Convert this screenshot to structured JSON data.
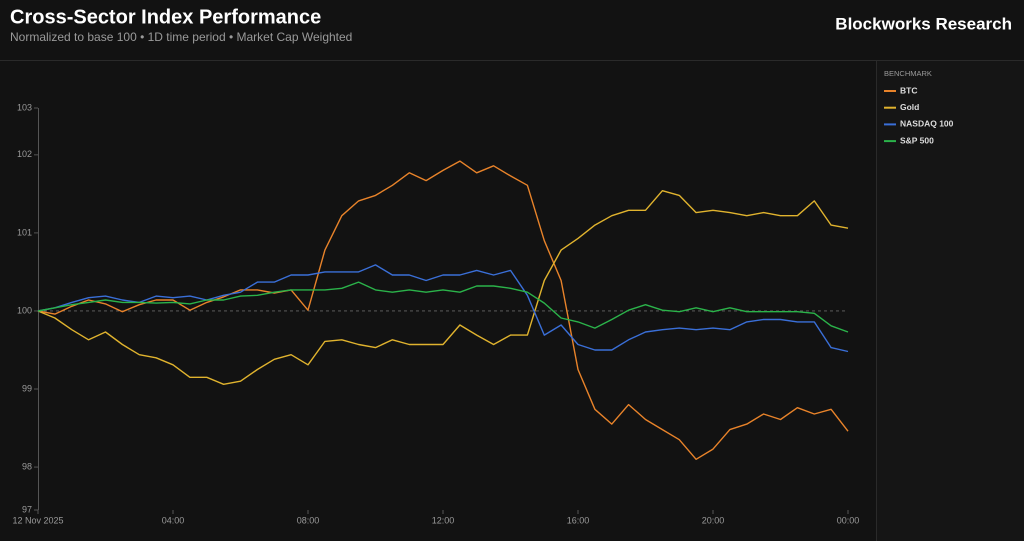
{
  "chart_data": {
    "type": "line",
    "title": "Cross-Sector Index Performance",
    "subtitle": "Normalized to base 100 • 1D time period • Market Cap Weighted",
    "brand": "Blockworks Research",
    "legend_title": "BENCHMARK",
    "legend": "right",
    "baseline": 100,
    "x": [
      0,
      0.5,
      1,
      1.5,
      2,
      2.5,
      3,
      3.5,
      4,
      4.5,
      5,
      5.5,
      6,
      6.5,
      7,
      7.5,
      8,
      8.5,
      9,
      9.5,
      10,
      10.5,
      11,
      11.5,
      12,
      12.5,
      13,
      13.5,
      14,
      14.5,
      15,
      15.5,
      16,
      16.5,
      17,
      17.5,
      18,
      18.5,
      19,
      19.5,
      20,
      20.5,
      21,
      21.5,
      22,
      22.5,
      23,
      23.5,
      24
    ],
    "xlim": [
      0,
      24
    ],
    "xticks": [
      {
        "value": 0,
        "label": "12 Nov 2025"
      },
      {
        "value": 4,
        "label": "04:00"
      },
      {
        "value": 8,
        "label": "08:00"
      },
      {
        "value": 12,
        "label": "12:00"
      },
      {
        "value": 16,
        "label": "16:00"
      },
      {
        "value": 20,
        "label": "20:00"
      },
      {
        "value": 24,
        "label": "00:00"
      }
    ],
    "ylim": [
      97.45,
      102.6
    ],
    "yticks": [
      {
        "value": 97.45,
        "label": "97"
      },
      98,
      99,
      100,
      101,
      102,
      {
        "value": 102.6,
        "label": "103"
      }
    ],
    "series": [
      {
        "name": "BTC",
        "color": "#e8832a",
        "values": [
          100,
          99.96,
          100.06,
          100.14,
          100.09,
          99.99,
          100.08,
          100.14,
          100.14,
          100.01,
          100.11,
          100.18,
          100.27,
          100.27,
          100.23,
          100.27,
          100.01,
          100.78,
          101.22,
          101.41,
          101.48,
          101.61,
          101.77,
          101.67,
          101.8,
          101.92,
          101.77,
          101.86,
          101.73,
          101.61,
          100.9,
          100.39,
          99.25,
          98.74,
          98.55,
          98.8,
          98.61,
          98.48,
          98.35,
          98.1,
          98.23,
          98.48,
          98.55,
          98.68,
          98.61,
          98.76,
          98.68,
          98.74,
          98.46
        ]
      },
      {
        "name": "Gold",
        "color": "#e0b32e",
        "values": [
          100,
          99.91,
          99.76,
          99.63,
          99.73,
          99.57,
          99.44,
          99.4,
          99.31,
          99.15,
          99.15,
          99.06,
          99.1,
          99.25,
          99.38,
          99.44,
          99.31,
          99.61,
          99.63,
          99.57,
          99.53,
          99.63,
          99.57,
          99.57,
          99.57,
          99.82,
          99.69,
          99.57,
          99.69,
          99.69,
          100.39,
          100.78,
          100.93,
          101.1,
          101.22,
          101.29,
          101.29,
          101.54,
          101.48,
          101.26,
          101.29,
          101.26,
          101.22,
          101.26,
          101.22,
          101.22,
          101.41,
          101.1,
          101.06
        ]
      },
      {
        "name": "NASDAQ 100",
        "color": "#3a6fd8",
        "values": [
          100,
          100.04,
          100.11,
          100.17,
          100.19,
          100.14,
          100.11,
          100.19,
          100.17,
          100.19,
          100.14,
          100.2,
          100.24,
          100.37,
          100.37,
          100.46,
          100.46,
          100.5,
          100.5,
          100.5,
          100.59,
          100.46,
          100.46,
          100.39,
          100.46,
          100.46,
          100.52,
          100.46,
          100.52,
          100.2,
          99.69,
          99.82,
          99.57,
          99.5,
          99.5,
          99.63,
          99.73,
          99.76,
          99.78,
          99.76,
          99.78,
          99.76,
          99.86,
          99.89,
          99.89,
          99.86,
          99.86,
          99.53,
          99.48
        ]
      },
      {
        "name": "S&P 500",
        "color": "#2bb34a",
        "values": [
          100,
          100.04,
          100.08,
          100.11,
          100.14,
          100.11,
          100.11,
          100.1,
          100.11,
          100.09,
          100.14,
          100.14,
          100.19,
          100.2,
          100.24,
          100.27,
          100.27,
          100.27,
          100.29,
          100.37,
          100.27,
          100.24,
          100.27,
          100.24,
          100.27,
          100.24,
          100.32,
          100.32,
          100.29,
          100.24,
          100.1,
          99.91,
          99.86,
          99.78,
          99.89,
          100.01,
          100.08,
          100.01,
          99.99,
          100.04,
          99.99,
          100.04,
          99.99,
          99.99,
          99.99,
          99.99,
          99.97,
          99.81,
          99.73
        ]
      }
    ]
  }
}
